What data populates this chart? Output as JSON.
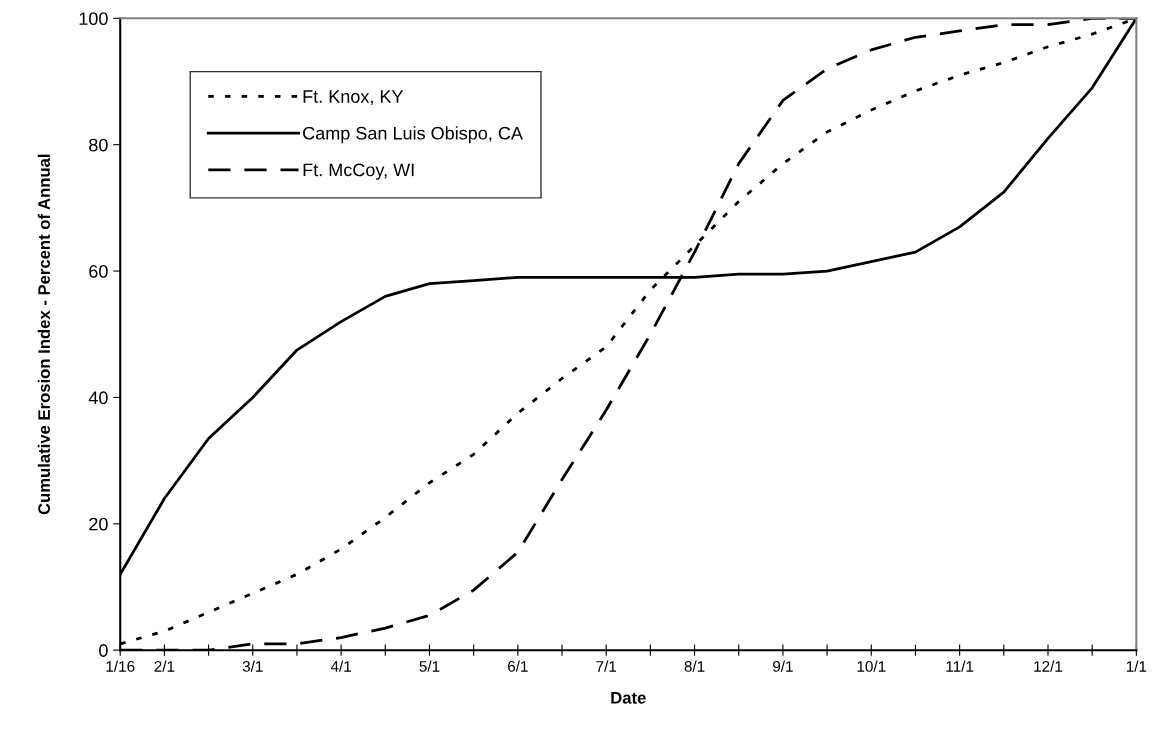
{
  "chart_data": {
    "type": "line",
    "xlabel": "Date",
    "ylabel": "Cumulative Erosion Index - Percent of Annual",
    "categories": [
      "1/16",
      "2/1",
      null,
      "3/1",
      null,
      "4/1",
      null,
      "5/1",
      null,
      "6/1",
      null,
      "7/1",
      null,
      "8/1",
      null,
      "9/1",
      null,
      "10/1",
      null,
      "11/1",
      null,
      "12/1",
      null,
      "1/1"
    ],
    "series": [
      {
        "name": "Ft. Knox, KY",
        "color": "#000000",
        "line_style": "dotted",
        "values": [
          1,
          3,
          6,
          9,
          12,
          16,
          21,
          26.5,
          31,
          37.5,
          43,
          48,
          57,
          64,
          71,
          77,
          82,
          85.5,
          88.5,
          91,
          93,
          95.5,
          97.5,
          100
        ]
      },
      {
        "name": "Camp San Luis Obispo, CA",
        "color": "#000000",
        "line_style": "solid",
        "values": [
          12,
          24,
          33.5,
          40,
          47.5,
          52,
          56,
          58,
          58.5,
          59,
          59,
          59,
          59,
          59,
          59.5,
          59.5,
          60,
          61.5,
          63,
          67,
          72.5,
          81,
          89,
          100
        ]
      },
      {
        "name": "Ft. McCoy, WI",
        "color": "#000000",
        "line_style": "dashed",
        "values": [
          0,
          0,
          0,
          1,
          1,
          2,
          3.5,
          5.5,
          9.5,
          15.5,
          27,
          38,
          50,
          63,
          77,
          87,
          92,
          95,
          97,
          98,
          99,
          99,
          100,
          100
        ]
      }
    ],
    "ylim": [
      0,
      100
    ],
    "yticks": [
      0,
      20,
      40,
      60,
      80,
      100
    ],
    "legend": "top left",
    "grid": false
  }
}
